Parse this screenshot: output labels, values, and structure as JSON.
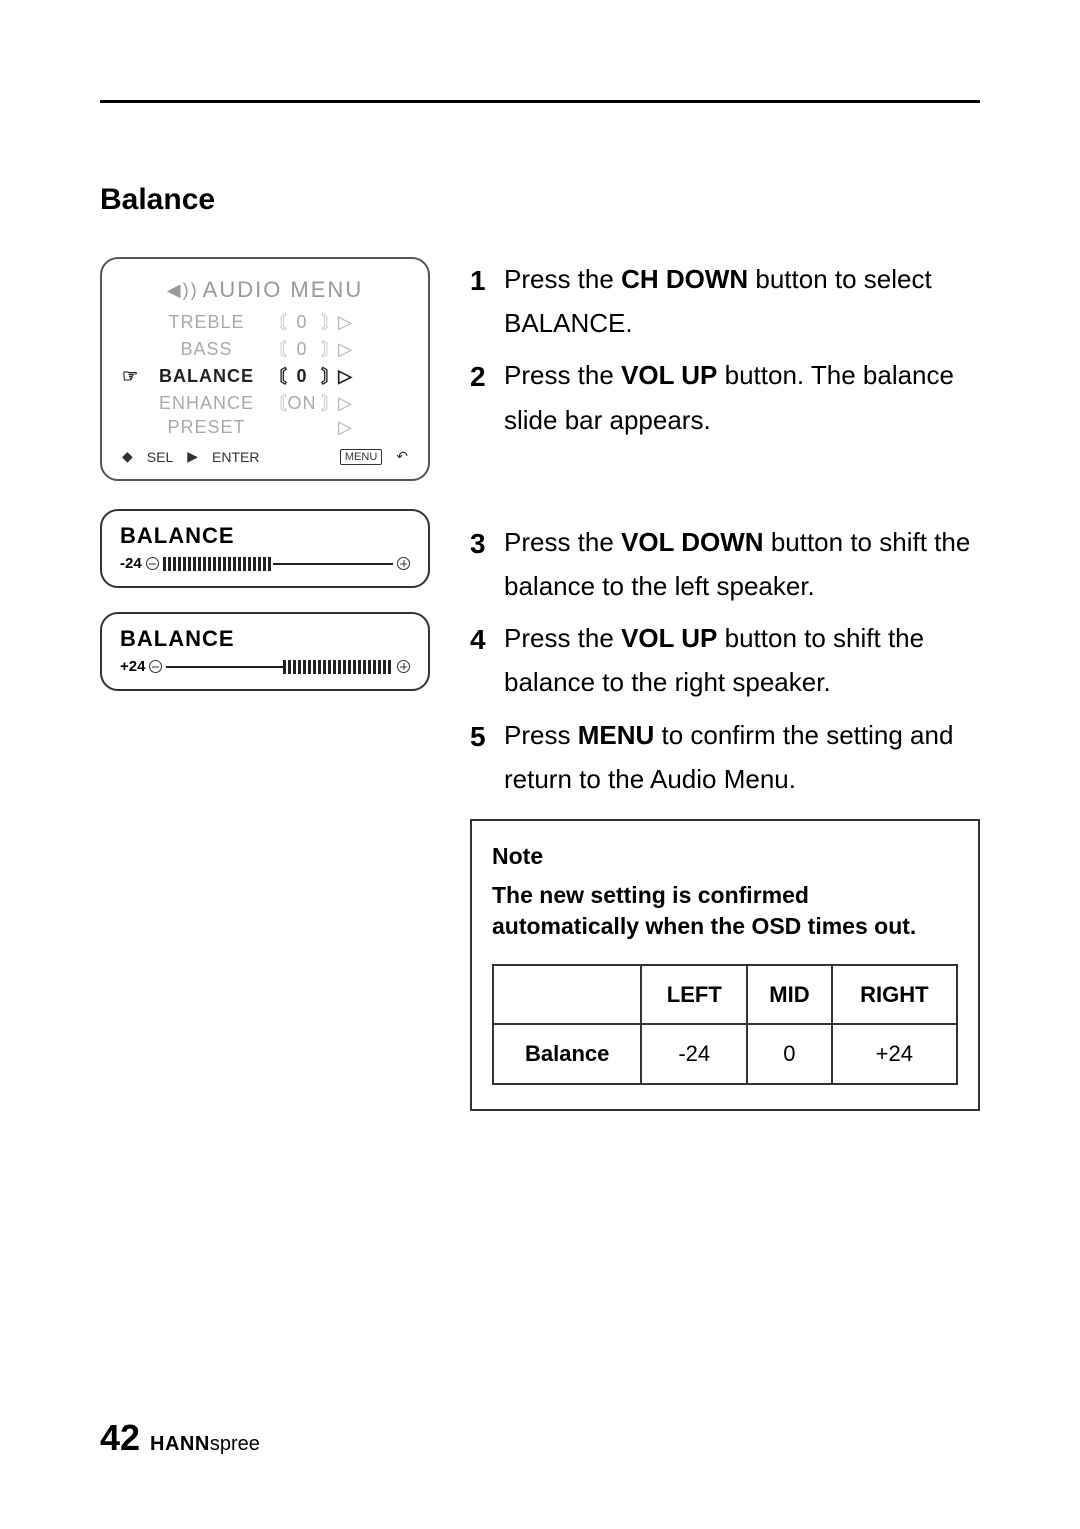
{
  "section_title": "Balance",
  "osd": {
    "title": "AUDIO  MENU",
    "rows": [
      {
        "label": "TREBLE",
        "value": "0",
        "selected": false,
        "has_brackets": true
      },
      {
        "label": "BASS",
        "value": "0",
        "selected": false,
        "has_brackets": true
      },
      {
        "label": "BALANCE",
        "value": "0",
        "selected": true,
        "has_brackets": true
      },
      {
        "label": "ENHANCE",
        "value": "ON",
        "selected": false,
        "has_brackets": true
      },
      {
        "label": "PRESET",
        "value": "",
        "selected": false,
        "has_brackets": false
      }
    ],
    "footer_sel": "SEL",
    "footer_enter": "ENTER",
    "footer_menu": "MENU"
  },
  "balance_boxes": [
    {
      "title": "BALANCE",
      "value": "-24",
      "fill_side": "left"
    },
    {
      "title": "BALANCE",
      "value": "+24",
      "fill_side": "right"
    }
  ],
  "steps_a": [
    {
      "n": "1",
      "pre": "Press the ",
      "bold": "CH DOWN",
      "post": " button to select BALANCE."
    },
    {
      "n": "2",
      "pre": "Press the ",
      "bold": "VOL UP",
      "post": " button. The balance slide bar appears."
    }
  ],
  "steps_b": [
    {
      "n": "3",
      "pre": "Press the ",
      "bold": "VOL DOWN",
      "post": " button to shift the balance to the left speaker."
    },
    {
      "n": "4",
      "pre": "Press the ",
      "bold": "VOL UP",
      "post": " button to shift the balance to the right speaker."
    },
    {
      "n": "5",
      "pre": "Press ",
      "bold": "MENU",
      "post": " to confirm the setting and return to the Audio Menu."
    }
  ],
  "note": {
    "title": "Note",
    "text": "The new setting is confirmed automatically when the OSD times out.",
    "table": {
      "headers": [
        "",
        "LEFT",
        "MID",
        "RIGHT"
      ],
      "row_label": "Balance",
      "values": [
        "-24",
        "0",
        "+24"
      ]
    }
  },
  "footer": {
    "page": "42",
    "brand_bold": "HANN",
    "brand_light": "spree"
  },
  "colors": {
    "text": "#000000",
    "dim": "#aaaaaa",
    "rule": "#000000",
    "border": "#333333",
    "bg": "#ffffff"
  }
}
